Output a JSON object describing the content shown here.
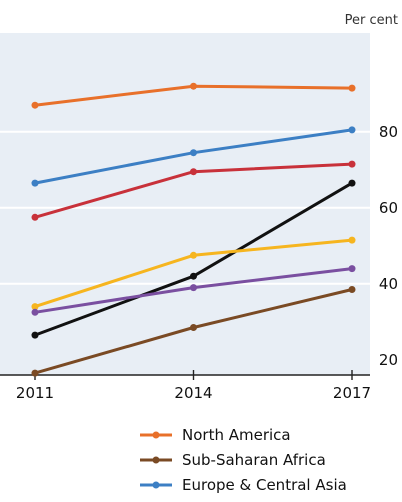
{
  "chart_data": {
    "type": "line",
    "unit_label": "Per cent",
    "x": [
      "2011",
      "2014",
      "2017"
    ],
    "ylim": [
      16,
      106
    ],
    "yticks": [
      20,
      40,
      60,
      80
    ],
    "grid": true,
    "legend_position": "bottom",
    "series": [
      {
        "name": "North America",
        "color": "#e8702a",
        "values": [
          87,
          92,
          91.5
        ]
      },
      {
        "name": "Europe & Central Asia",
        "color": "#3c7fc4",
        "values": [
          66.5,
          74.5,
          80.5
        ]
      },
      {
        "color": "#c8313a",
        "values": [
          57.5,
          69.5,
          71.5
        ]
      },
      {
        "color": "#111111",
        "values": [
          26.5,
          42,
          66.5
        ]
      },
      {
        "color": "#f6b51f",
        "values": [
          34,
          47.5,
          51.5
        ]
      },
      {
        "color": "#7a4fa0",
        "values": [
          32.5,
          39,
          44
        ]
      },
      {
        "name": "Sub-Saharan Africa",
        "color": "#7a4a24",
        "values": [
          16.5,
          28.5,
          38.5
        ]
      }
    ],
    "legend_order": [
      "North America",
      "Sub-Saharan Africa",
      "Europe & Central Asia"
    ]
  }
}
